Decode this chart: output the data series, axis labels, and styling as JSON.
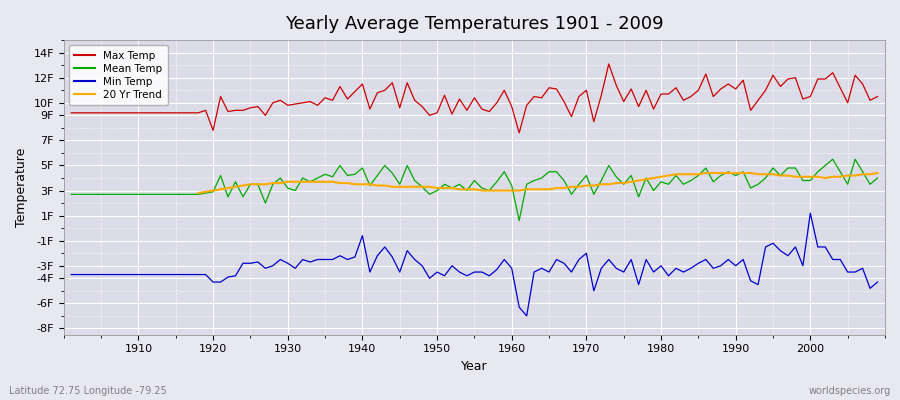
{
  "title": "Yearly Average Temperatures 1901 - 2009",
  "xlabel": "Year",
  "ylabel": "Temperature",
  "lat_lon_label": "Latitude 72.75 Longitude -79.25",
  "watermark": "worldspecies.org",
  "bg_color": "#e8e8f0",
  "plot_bg_color": "#dcdce8",
  "grid_color": "#ffffff",
  "ylim": [
    -8.5,
    15
  ],
  "yticks": [
    -8,
    -6,
    -4,
    -3,
    -1,
    1,
    3,
    5,
    7,
    9,
    10,
    12,
    14
  ],
  "ytick_labels": [
    "-8F",
    "-6F",
    "-4F",
    "-3F",
    "-1F",
    "1F",
    "3F",
    "5F",
    "7F",
    "9F",
    "10F",
    "12F",
    "14F"
  ],
  "xlim": [
    1900,
    2010
  ],
  "xticks": [
    1910,
    1920,
    1930,
    1940,
    1950,
    1960,
    1970,
    1980,
    1990,
    2000
  ],
  "start_year": 1901,
  "end_year": 2009,
  "max_temp_color": "#cc0000",
  "mean_temp_color": "#00aa00",
  "min_temp_color": "#0000cc",
  "trend_color": "#ffaa00",
  "max_temp": [
    9.2,
    9.2,
    9.2,
    9.2,
    9.2,
    9.2,
    9.2,
    9.2,
    9.2,
    9.2,
    9.2,
    9.2,
    9.2,
    9.2,
    9.2,
    9.2,
    9.2,
    9.2,
    9.4,
    7.8,
    10.5,
    9.3,
    9.4,
    9.4,
    9.6,
    9.7,
    9.0,
    10.0,
    10.2,
    9.8,
    9.9,
    10.0,
    10.1,
    9.8,
    10.4,
    10.2,
    11.3,
    10.3,
    10.9,
    11.5,
    9.5,
    10.8,
    11.0,
    11.6,
    9.6,
    11.6,
    10.2,
    9.7,
    9.0,
    9.2,
    10.6,
    9.1,
    10.3,
    9.4,
    10.4,
    9.5,
    9.3,
    10.0,
    11.0,
    9.7,
    7.6,
    9.8,
    10.5,
    10.4,
    11.2,
    11.1,
    10.1,
    8.9,
    10.5,
    11.0,
    8.5,
    10.6,
    13.1,
    11.4,
    10.1,
    11.1,
    9.7,
    11.0,
    9.5,
    10.7,
    10.7,
    11.2,
    10.2,
    10.5,
    11.0,
    12.3,
    10.5,
    11.1,
    11.5,
    11.1,
    11.8,
    9.4,
    10.2,
    11.0,
    12.2,
    11.3,
    11.9,
    12.0,
    10.3,
    10.5,
    11.9,
    11.9,
    12.4,
    11.2,
    10.0,
    12.2,
    11.5,
    10.2,
    10.5
  ],
  "mean_temp": [
    2.7,
    2.7,
    2.7,
    2.7,
    2.7,
    2.7,
    2.7,
    2.7,
    2.7,
    2.7,
    2.7,
    2.7,
    2.7,
    2.7,
    2.7,
    2.7,
    2.7,
    2.7,
    2.8,
    2.9,
    4.2,
    2.5,
    3.7,
    2.5,
    3.5,
    3.5,
    2.0,
    3.5,
    4.0,
    3.2,
    3.0,
    4.0,
    3.7,
    4.0,
    4.3,
    4.1,
    5.0,
    4.2,
    4.3,
    4.8,
    3.4,
    4.2,
    5.0,
    4.4,
    3.5,
    5.0,
    3.8,
    3.3,
    2.7,
    3.0,
    3.5,
    3.2,
    3.5,
    3.0,
    3.8,
    3.2,
    3.0,
    3.7,
    4.5,
    3.4,
    0.6,
    3.5,
    3.8,
    4.0,
    4.5,
    4.5,
    3.8,
    2.7,
    3.5,
    4.2,
    2.7,
    3.8,
    5.0,
    4.1,
    3.5,
    4.2,
    2.5,
    4.0,
    3.0,
    3.7,
    3.5,
    4.2,
    3.5,
    3.8,
    4.2,
    4.8,
    3.7,
    4.2,
    4.5,
    4.2,
    4.5,
    3.2,
    3.5,
    4.0,
    4.8,
    4.2,
    4.8,
    4.8,
    3.8,
    3.8,
    4.5,
    5.0,
    5.5,
    4.5,
    3.5,
    5.5,
    4.5,
    3.5,
    4.0
  ],
  "min_temp": [
    -3.7,
    -3.7,
    -3.7,
    -3.7,
    -3.7,
    -3.7,
    -3.7,
    -3.7,
    -3.7,
    -3.7,
    -3.7,
    -3.7,
    -3.7,
    -3.7,
    -3.7,
    -3.7,
    -3.7,
    -3.7,
    -3.7,
    -4.3,
    -4.3,
    -3.9,
    -3.8,
    -2.8,
    -2.8,
    -2.7,
    -3.2,
    -3.0,
    -2.5,
    -2.8,
    -3.2,
    -2.5,
    -2.7,
    -2.5,
    -2.5,
    -2.5,
    -2.2,
    -2.5,
    -2.3,
    -0.6,
    -3.5,
    -2.2,
    -1.5,
    -2.3,
    -3.5,
    -1.8,
    -2.5,
    -3.0,
    -4.0,
    -3.5,
    -3.8,
    -3.0,
    -3.5,
    -3.8,
    -3.5,
    -3.5,
    -3.8,
    -3.3,
    -2.5,
    -3.2,
    -6.3,
    -7.0,
    -3.5,
    -3.2,
    -3.5,
    -2.5,
    -2.8,
    -3.5,
    -2.5,
    -2.0,
    -5.0,
    -3.2,
    -2.5,
    -3.2,
    -3.5,
    -2.5,
    -4.5,
    -2.5,
    -3.5,
    -3.0,
    -3.8,
    -3.2,
    -3.5,
    -3.2,
    -2.8,
    -2.5,
    -3.2,
    -3.0,
    -2.5,
    -3.0,
    -2.5,
    -4.2,
    -4.5,
    -1.5,
    -1.2,
    -1.8,
    -2.2,
    -1.5,
    -3.0,
    1.2,
    -1.5,
    -1.5,
    -2.5,
    -2.5,
    -3.5,
    -3.5,
    -3.2,
    -4.8,
    -4.3
  ],
  "trend_start_year": 1918,
  "trend": [
    2.8,
    2.9,
    3.0,
    3.1,
    3.2,
    3.3,
    3.4,
    3.5,
    3.5,
    3.5,
    3.6,
    3.6,
    3.7,
    3.7,
    3.7,
    3.7,
    3.7,
    3.7,
    3.7,
    3.6,
    3.6,
    3.5,
    3.5,
    3.5,
    3.4,
    3.4,
    3.3,
    3.3,
    3.3,
    3.3,
    3.3,
    3.3,
    3.2,
    3.2,
    3.2,
    3.1,
    3.1,
    3.1,
    3.0,
    3.0,
    3.0,
    3.0,
    3.0,
    3.0,
    3.1,
    3.1,
    3.1,
    3.1,
    3.2,
    3.2,
    3.3,
    3.3,
    3.4,
    3.4,
    3.5,
    3.5,
    3.6,
    3.6,
    3.7,
    3.8,
    3.9,
    4.0,
    4.1,
    4.2,
    4.3,
    4.3,
    4.3,
    4.3,
    4.4,
    4.4,
    4.4,
    4.4,
    4.4,
    4.4,
    4.4,
    4.3,
    4.3,
    4.3,
    4.2,
    4.2,
    4.1,
    4.1,
    4.1,
    4.1,
    4.0,
    4.1,
    4.1,
    4.2,
    4.2,
    4.3,
    4.3,
    4.4
  ]
}
